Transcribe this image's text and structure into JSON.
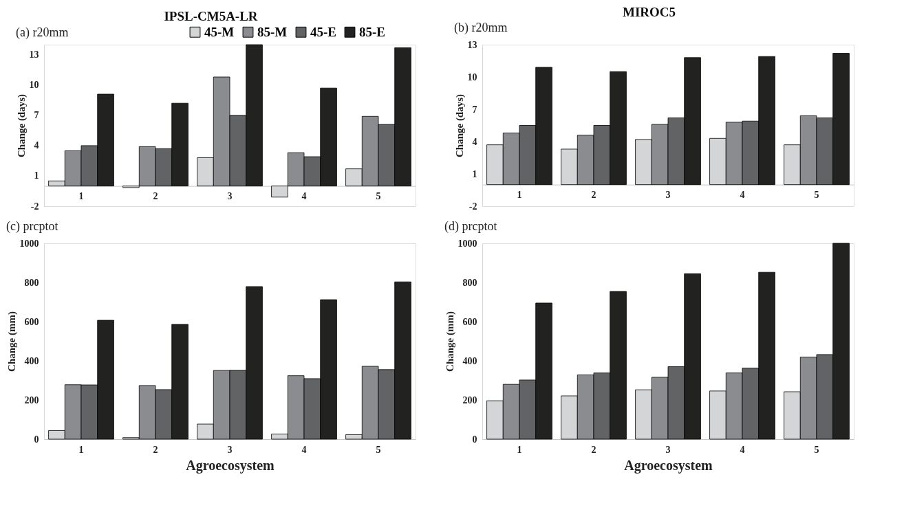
{
  "chart_data": [
    {
      "type": "bar",
      "title": "IPSL-CM5A-LR",
      "subtitle": "(a) r20mm",
      "ylabel": "Change (days)",
      "categories": [
        "1",
        "2",
        "3",
        "4",
        "5"
      ],
      "ylim": [
        -2,
        14
      ],
      "yticks": [
        -2,
        1,
        4,
        7,
        10,
        13
      ],
      "grid": false,
      "legend": "top right",
      "series": [
        {
          "name": "45-M",
          "color": "#d4d5d7",
          "values": [
            0.5,
            -0.15,
            2.8,
            -1.1,
            1.7
          ]
        },
        {
          "name": "85-M",
          "color": "#8b8c90",
          "values": [
            3.5,
            3.9,
            10.8,
            3.3,
            6.9
          ]
        },
        {
          "name": "45-E",
          "color": "#626365",
          "values": [
            4.0,
            3.7,
            7.0,
            2.9,
            6.1
          ]
        },
        {
          "name": "85-E",
          "color": "#222220",
          "values": [
            9.1,
            8.2,
            14.0,
            9.7,
            13.7
          ]
        }
      ]
    },
    {
      "type": "bar",
      "title": "MIROC5",
      "subtitle": "(b) r20mm",
      "ylabel": "Change (days)",
      "categories": [
        "1",
        "2",
        "3",
        "4",
        "5"
      ],
      "ylim": [
        -2,
        13
      ],
      "yticks": [
        -2,
        1,
        4,
        7,
        10,
        13
      ],
      "grid": false,
      "series": [
        {
          "color": "#d4d5d7",
          "values": [
            3.7,
            3.3,
            4.2,
            4.3,
            3.7
          ]
        },
        {
          "color": "#8b8c90",
          "values": [
            4.8,
            4.6,
            5.6,
            5.8,
            6.4
          ]
        },
        {
          "color": "#626365",
          "values": [
            5.5,
            5.5,
            6.2,
            5.9,
            6.2
          ]
        },
        {
          "color": "#222220",
          "values": [
            10.9,
            10.5,
            11.8,
            11.9,
            12.2
          ]
        }
      ]
    },
    {
      "type": "bar",
      "subtitle": "(c) prcptot",
      "xlabel": "Agroecosystem",
      "ylabel": "Change (mm)",
      "categories": [
        "1",
        "2",
        "3",
        "4",
        "5"
      ],
      "ylim": [
        0,
        1000
      ],
      "yticks": [
        0,
        200,
        400,
        600,
        800,
        1000
      ],
      "grid": false,
      "series": [
        {
          "color": "#d4d5d7",
          "values": [
            44,
            8,
            77,
            26,
            23
          ]
        },
        {
          "color": "#8b8c90",
          "values": [
            278,
            274,
            351,
            324,
            372
          ]
        },
        {
          "color": "#626365",
          "values": [
            277,
            253,
            352,
            309,
            355
          ]
        },
        {
          "color": "#222220",
          "values": [
            607,
            586,
            779,
            712,
            803
          ]
        }
      ]
    },
    {
      "type": "bar",
      "subtitle": "(d) prcptot",
      "xlabel": "Agroecosystem",
      "ylabel": "Change (mm)",
      "categories": [
        "1",
        "2",
        "3",
        "4",
        "5"
      ],
      "ylim": [
        0,
        1000
      ],
      "yticks": [
        0,
        200,
        400,
        600,
        800,
        1000
      ],
      "grid": false,
      "series": [
        {
          "color": "#d4d5d7",
          "values": [
            196,
            221,
            252,
            246,
            242
          ]
        },
        {
          "color": "#8b8c90",
          "values": [
            280,
            328,
            316,
            338,
            419
          ]
        },
        {
          "color": "#626365",
          "values": [
            302,
            338,
            370,
            363,
            432
          ]
        },
        {
          "color": "#222220",
          "values": [
            695,
            754,
            845,
            852,
            1000
          ]
        }
      ]
    }
  ]
}
